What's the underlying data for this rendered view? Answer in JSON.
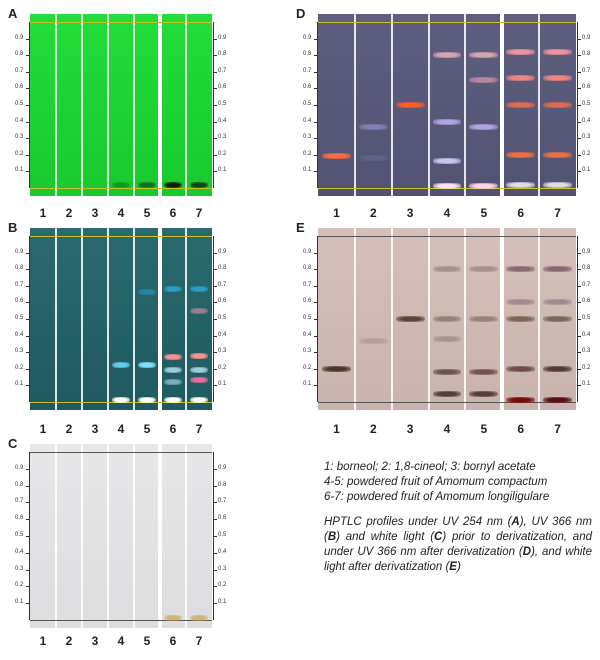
{
  "panels": [
    {
      "label": "A",
      "bg": "#22dd3a",
      "bg2": "#18c92e",
      "lines": "#c9c02a",
      "bands": [
        {
          "lane": 3,
          "rf": 0.02,
          "color": "#0a7a1a",
          "op": 0.6
        },
        {
          "lane": 4,
          "rf": 0.02,
          "color": "#0a5a12",
          "op": 0.8
        },
        {
          "lane": 5,
          "rf": 0.02,
          "color": "#05200a",
          "op": 1
        },
        {
          "lane": 6,
          "rf": 0.02,
          "color": "#0a3012",
          "op": 0.85
        }
      ]
    },
    {
      "label": "B",
      "bg": "#2a6a6e",
      "bg2": "#1f5a60",
      "lines": "#c9c02a",
      "bands": [
        {
          "lane": 3,
          "rf": 0.22,
          "color": "#6ad6ff",
          "op": 0.9
        },
        {
          "lane": 3,
          "rf": 0.01,
          "color": "#ffffff",
          "op": 1
        },
        {
          "lane": 4,
          "rf": 0.22,
          "color": "#7ee0ff",
          "op": 1
        },
        {
          "lane": 4,
          "rf": 0.66,
          "color": "#2aa8d8",
          "op": 0.5
        },
        {
          "lane": 4,
          "rf": 0.01,
          "color": "#ffffff",
          "op": 1
        },
        {
          "lane": 5,
          "rf": 0.27,
          "color": "#ff8f8f",
          "op": 1
        },
        {
          "lane": 5,
          "rf": 0.19,
          "color": "#bfe9ff",
          "op": 0.8
        },
        {
          "lane": 5,
          "rf": 0.12,
          "color": "#9fd0e0",
          "op": 0.7
        },
        {
          "lane": 5,
          "rf": 0.68,
          "color": "#2ab8e8",
          "op": 0.7
        },
        {
          "lane": 5,
          "rf": 0.01,
          "color": "#ffffff",
          "op": 1
        },
        {
          "lane": 6,
          "rf": 0.28,
          "color": "#ff8f8f",
          "op": 1
        },
        {
          "lane": 6,
          "rf": 0.19,
          "color": "#bfe9ff",
          "op": 0.8
        },
        {
          "lane": 6,
          "rf": 0.13,
          "color": "#ff6fa0",
          "op": 0.9
        },
        {
          "lane": 6,
          "rf": 0.55,
          "color": "#ff9fb0",
          "op": 0.5
        },
        {
          "lane": 6,
          "rf": 0.68,
          "color": "#2ab8e8",
          "op": 0.7
        },
        {
          "lane": 6,
          "rf": 0.01,
          "color": "#ffffff",
          "op": 1
        }
      ]
    },
    {
      "label": "C",
      "bg": "#e7e7e9",
      "bg2": "#dddddf",
      "lines": "#555555",
      "bands": [
        {
          "lane": 5,
          "rf": 0.01,
          "color": "#c9a248",
          "op": 0.7
        },
        {
          "lane": 6,
          "rf": 0.01,
          "color": "#c9a248",
          "op": 0.7
        }
      ]
    },
    {
      "label": "D",
      "bg": "#5e5f80",
      "bg2": "#525372",
      "lines": "#c9c02a",
      "bands": [
        {
          "lane": 0,
          "rf": 0.19,
          "color": "#ff6a3d",
          "op": 1
        },
        {
          "lane": 1,
          "rf": 0.37,
          "color": "#9f97d8",
          "op": 0.6
        },
        {
          "lane": 1,
          "rf": 0.18,
          "color": "#6c6ea0",
          "op": 0.5
        },
        {
          "lane": 2,
          "rf": 0.5,
          "color": "#ff5a2a",
          "op": 1
        },
        {
          "lane": 3,
          "rf": 0.8,
          "color": "#f2b9b9",
          "op": 0.8
        },
        {
          "lane": 3,
          "rf": 0.4,
          "color": "#c8b4ff",
          "op": 0.8
        },
        {
          "lane": 3,
          "rf": 0.16,
          "color": "#d8d0ff",
          "op": 0.9
        },
        {
          "lane": 3,
          "rf": 0.01,
          "color": "#ffe0f0",
          "op": 1
        },
        {
          "lane": 4,
          "rf": 0.8,
          "color": "#f2b9b9",
          "op": 0.8
        },
        {
          "lane": 4,
          "rf": 0.65,
          "color": "#f0a8b8",
          "op": 0.6
        },
        {
          "lane": 4,
          "rf": 0.37,
          "color": "#c8b4ff",
          "op": 0.8
        },
        {
          "lane": 4,
          "rf": 0.01,
          "color": "#ffd0e8",
          "op": 1
        },
        {
          "lane": 5,
          "rf": 0.82,
          "color": "#ff9aa0",
          "op": 0.9
        },
        {
          "lane": 5,
          "rf": 0.66,
          "color": "#ff8a80",
          "op": 0.9
        },
        {
          "lane": 5,
          "rf": 0.5,
          "color": "#ff7040",
          "op": 0.8
        },
        {
          "lane": 5,
          "rf": 0.2,
          "color": "#ff7040",
          "op": 0.9
        },
        {
          "lane": 5,
          "rf": 0.02,
          "color": "#ffffff",
          "op": 0.8
        },
        {
          "lane": 6,
          "rf": 0.82,
          "color": "#ff9aa0",
          "op": 0.9
        },
        {
          "lane": 6,
          "rf": 0.66,
          "color": "#ff8a80",
          "op": 0.9
        },
        {
          "lane": 6,
          "rf": 0.5,
          "color": "#ff7040",
          "op": 0.8
        },
        {
          "lane": 6,
          "rf": 0.2,
          "color": "#ff7040",
          "op": 0.9
        },
        {
          "lane": 6,
          "rf": 0.02,
          "color": "#ffffff",
          "op": 0.8
        }
      ]
    },
    {
      "label": "E",
      "bg": "#d4bfba",
      "bg2": "#c9b3ae",
      "lines": "#555555",
      "bands": [
        {
          "lane": 0,
          "rf": 0.2,
          "color": "#3a2a1a",
          "op": 0.9
        },
        {
          "lane": 1,
          "rf": 0.37,
          "color": "#a98e88",
          "op": 0.6
        },
        {
          "lane": 2,
          "rf": 0.5,
          "color": "#4a3a2a",
          "op": 0.9
        },
        {
          "lane": 3,
          "rf": 0.8,
          "color": "#8c7070",
          "op": 0.6
        },
        {
          "lane": 3,
          "rf": 0.5,
          "color": "#7a5a50",
          "op": 0.6
        },
        {
          "lane": 3,
          "rf": 0.38,
          "color": "#8a6e70",
          "op": 0.5
        },
        {
          "lane": 3,
          "rf": 0.18,
          "color": "#5a3a3a",
          "op": 0.8
        },
        {
          "lane": 3,
          "rf": 0.05,
          "color": "#3a2020",
          "op": 0.8
        },
        {
          "lane": 4,
          "rf": 0.8,
          "color": "#8c7070",
          "op": 0.6
        },
        {
          "lane": 4,
          "rf": 0.5,
          "color": "#7a5a50",
          "op": 0.6
        },
        {
          "lane": 4,
          "rf": 0.18,
          "color": "#5a3a3a",
          "op": 0.8
        },
        {
          "lane": 4,
          "rf": 0.05,
          "color": "#3a2020",
          "op": 0.8
        },
        {
          "lane": 5,
          "rf": 0.8,
          "color": "#7a5060",
          "op": 0.8
        },
        {
          "lane": 5,
          "rf": 0.6,
          "color": "#8a6878",
          "op": 0.6
        },
        {
          "lane": 5,
          "rf": 0.5,
          "color": "#6a5040",
          "op": 0.8
        },
        {
          "lane": 5,
          "rf": 0.2,
          "color": "#5a3030",
          "op": 0.8
        },
        {
          "lane": 5,
          "rf": 0.01,
          "color": "#7a0a0a",
          "op": 1
        },
        {
          "lane": 6,
          "rf": 0.8,
          "color": "#7a5060",
          "op": 0.8
        },
        {
          "lane": 6,
          "rf": 0.6,
          "color": "#8a6878",
          "op": 0.6
        },
        {
          "lane": 6,
          "rf": 0.5,
          "color": "#6a5040",
          "op": 0.8
        },
        {
          "lane": 6,
          "rf": 0.2,
          "color": "#4a2a2a",
          "op": 0.9
        },
        {
          "lane": 6,
          "rf": 0.01,
          "color": "#5a1010",
          "op": 1
        }
      ]
    }
  ],
  "lane_numbers": [
    "1",
    "2",
    "3",
    "4",
    "5",
    "6",
    "7"
  ],
  "scale_ticks": [
    "0.9",
    "0.8",
    "0.7",
    "0.6",
    "0.5",
    "0.4",
    "0.3",
    "0.2",
    "0.1"
  ],
  "legend": {
    "line1": "1: borneol; 2: 1,8-cineol; 3: bornyl acetate",
    "line2": "4-5: powdered fruit of Amomum compactum",
    "line3": "6-7: powdered fruit of Amomum longiligulare",
    "caption_html": "HPTLC profiles under UV 254 nm (<b>A</b>), UV 366 nm (<b>B</b>) and white light (<b>C</b>) prior to derivatization, and under UV 366 nm after derivatization (<b>D</b>), and white light after derivatization (<b>E</b>)"
  }
}
